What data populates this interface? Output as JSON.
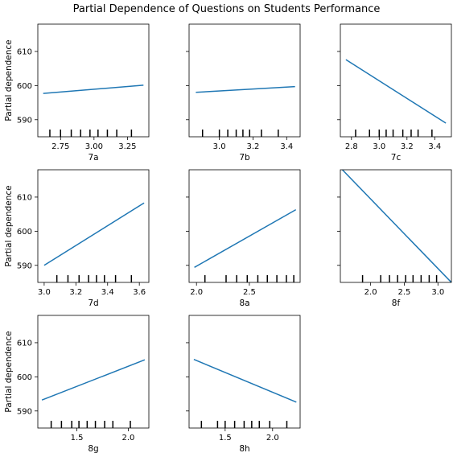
{
  "figure": {
    "title": "Partial Dependence of Questions on Students Performance",
    "ylabel": "Partial dependence"
  },
  "colors": {
    "line": "#1f77b4",
    "axis": "#000000",
    "rug": "#000000"
  },
  "chart_data": [
    {
      "type": "line",
      "xlabel": "7a",
      "ylabel": "Partial dependence",
      "xlim": [
        2.58,
        3.41
      ],
      "ylim": [
        585,
        618
      ],
      "xticks": [
        2.75,
        3.0,
        3.25
      ],
      "xtick_labels": [
        "2.75",
        "3.00",
        "3.25"
      ],
      "yticks": [
        590,
        600,
        610
      ],
      "ytick_labels": [
        "590",
        "600",
        "610"
      ],
      "x": [
        2.62,
        3.37
      ],
      "y": [
        597.7,
        600.1
      ],
      "rug": [
        2.67,
        2.75,
        2.83,
        2.9,
        2.97,
        3.03,
        3.1,
        3.17,
        3.28
      ]
    },
    {
      "type": "line",
      "xlabel": "7b",
      "ylabel": "",
      "xlim": [
        2.82,
        3.48
      ],
      "ylim": [
        585,
        618
      ],
      "xticks": [
        3.0,
        3.2,
        3.4
      ],
      "xtick_labels": [
        "3.0",
        "3.2",
        "3.4"
      ],
      "yticks": [
        590,
        600,
        610
      ],
      "ytick_labels": [
        "",
        "",
        ""
      ],
      "x": [
        2.86,
        3.45
      ],
      "y": [
        598.0,
        599.7
      ],
      "rug": [
        2.9,
        3.0,
        3.05,
        3.1,
        3.14,
        3.18,
        3.25,
        3.35
      ]
    },
    {
      "type": "line",
      "xlabel": "7c",
      "ylabel": "",
      "xlim": [
        2.72,
        3.52
      ],
      "ylim": [
        585,
        618
      ],
      "xticks": [
        2.8,
        3.0,
        3.2,
        3.4
      ],
      "xtick_labels": [
        "2.8",
        "3.0",
        "3.2",
        "3.4"
      ],
      "yticks": [
        590,
        600,
        610
      ],
      "ytick_labels": [
        "",
        "",
        ""
      ],
      "x": [
        2.76,
        3.48
      ],
      "y": [
        607.6,
        589.0
      ],
      "rug": [
        2.83,
        2.93,
        3.0,
        3.05,
        3.1,
        3.17,
        3.23,
        3.28,
        3.38
      ]
    },
    {
      "type": "line",
      "xlabel": "7d",
      "ylabel": "Partial dependence",
      "xlim": [
        2.96,
        3.66
      ],
      "ylim": [
        585,
        618
      ],
      "xticks": [
        3.0,
        3.2,
        3.4,
        3.6
      ],
      "xtick_labels": [
        "3.0",
        "3.2",
        "3.4",
        "3.6"
      ],
      "yticks": [
        590,
        600,
        610
      ],
      "ytick_labels": [
        "590",
        "600",
        "610"
      ],
      "x": [
        3.0,
        3.63
      ],
      "y": [
        590.0,
        608.3
      ],
      "rug": [
        3.08,
        3.15,
        3.22,
        3.28,
        3.33,
        3.38,
        3.45,
        3.55
      ]
    },
    {
      "type": "line",
      "xlabel": "8a",
      "ylabel": "",
      "xlim": [
        1.93,
        2.98
      ],
      "ylim": [
        585,
        618
      ],
      "xticks": [
        2.0,
        2.5
      ],
      "xtick_labels": [
        "2.0",
        "2.5"
      ],
      "yticks": [
        590,
        600,
        610
      ],
      "ytick_labels": [
        "",
        "",
        ""
      ],
      "x": [
        1.98,
        2.94
      ],
      "y": [
        589.4,
        606.3
      ],
      "rug": [
        2.08,
        2.28,
        2.38,
        2.48,
        2.58,
        2.67,
        2.76,
        2.85,
        2.92
      ]
    },
    {
      "type": "line",
      "xlabel": "8f",
      "ylabel": "",
      "xlim": [
        1.55,
        3.2
      ],
      "ylim": [
        585,
        618
      ],
      "xticks": [
        2.0,
        2.5,
        3.0
      ],
      "xtick_labels": [
        "2.0",
        "2.5",
        "3.0"
      ],
      "yticks": [
        590,
        600,
        610
      ],
      "ytick_labels": [
        "",
        "",
        ""
      ],
      "x": [
        1.58,
        3.2
      ],
      "y": [
        618.0,
        585.0
      ],
      "rug": [
        1.88,
        2.15,
        2.28,
        2.4,
        2.52,
        2.63,
        2.75,
        2.87,
        2.98
      ]
    },
    {
      "type": "line",
      "xlabel": "8g",
      "ylabel": "Partial dependence",
      "xlim": [
        1.12,
        2.2
      ],
      "ylim": [
        585,
        618
      ],
      "xticks": [
        1.5,
        2.0
      ],
      "xtick_labels": [
        "1.5",
        "2.0"
      ],
      "yticks": [
        590,
        600,
        610
      ],
      "ytick_labels": [
        "590",
        "600",
        "610"
      ],
      "x": [
        1.16,
        2.16
      ],
      "y": [
        593.2,
        605.0
      ],
      "rug": [
        1.25,
        1.35,
        1.45,
        1.52,
        1.6,
        1.68,
        1.77,
        1.85,
        2.02
      ]
    },
    {
      "type": "line",
      "xlabel": "8h",
      "ylabel": "",
      "xlim": [
        1.12,
        2.29
      ],
      "ylim": [
        585,
        618
      ],
      "xticks": [
        1.5,
        2.0
      ],
      "xtick_labels": [
        "1.5",
        "2.0"
      ],
      "yticks": [
        590,
        600,
        610
      ],
      "ytick_labels": [
        "",
        "",
        ""
      ],
      "x": [
        1.17,
        2.25
      ],
      "y": [
        605.1,
        592.6
      ],
      "rug": [
        1.25,
        1.42,
        1.5,
        1.6,
        1.7,
        1.78,
        1.86,
        1.97,
        2.15
      ]
    }
  ]
}
